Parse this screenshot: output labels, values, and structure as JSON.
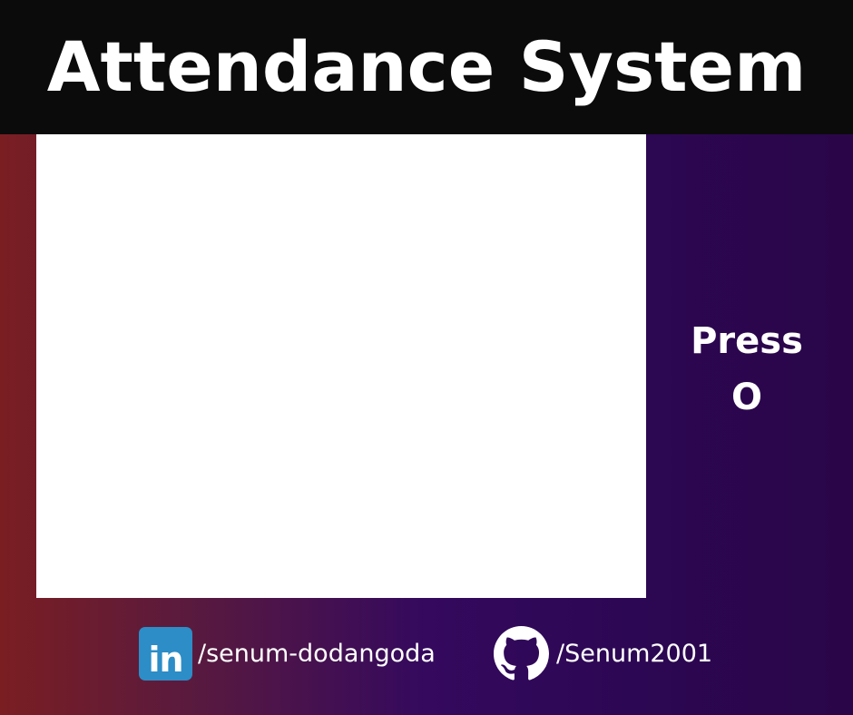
{
  "header": {
    "title": "Attendance System"
  },
  "camera_frame": {
    "state": "blank"
  },
  "instruction": {
    "line1": "Press",
    "line2": "O"
  },
  "footer": {
    "linkedin": {
      "icon": "linkedin-icon",
      "icon_text": "in",
      "handle": "/senum-dodangoda",
      "color": "#2c8dc7"
    },
    "github": {
      "icon": "github-icon",
      "handle": "/Senum2001"
    }
  },
  "colors": {
    "header_bg": "#0b0b0b",
    "gradient_left": "#7a1e22",
    "gradient_right": "#2a0648",
    "text": "#ffffff"
  }
}
